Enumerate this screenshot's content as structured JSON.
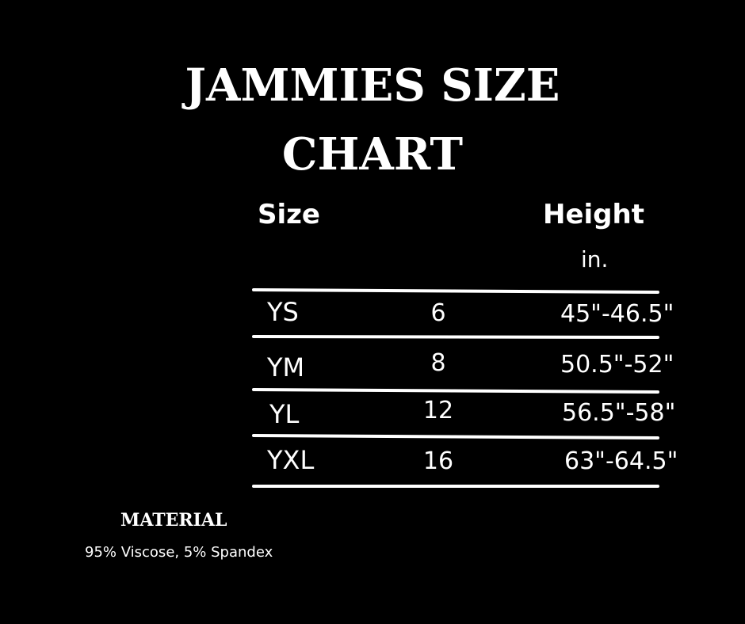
{
  "title": {
    "lines": [
      "JAMMIES SIZE",
      "CHART"
    ]
  },
  "table": {
    "header": {
      "size": "Size",
      "height": "Height",
      "unit": "in."
    },
    "rows": [
      [
        "YS",
        "6",
        "45\"-46.5\""
      ],
      [
        "YM",
        "8",
        "50.5\"-52\""
      ],
      [
        "YL",
        "12",
        "56.5\"-58\""
      ],
      [
        "YXL",
        "16",
        "63\"-64.5\""
      ]
    ]
  },
  "material": {
    "heading": "MATERIAL",
    "text": "95% Viscose, 5% Spandex"
  }
}
